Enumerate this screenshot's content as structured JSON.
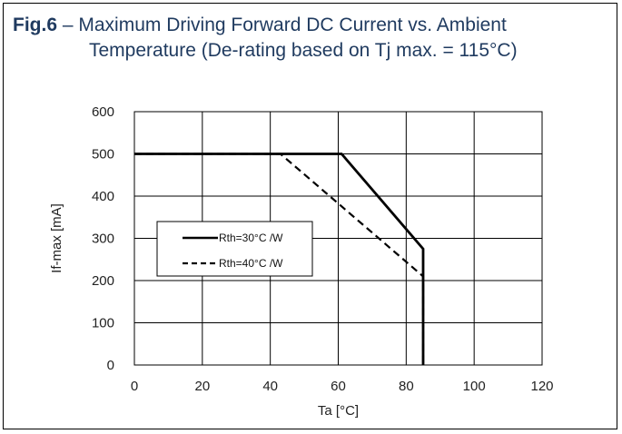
{
  "title": {
    "label": "Fig.6",
    "dash": " – ",
    "line1": "Maximum Driving Forward DC Current vs. Ambient",
    "line2": "Temperature (De-rating based on Tj max. = 115°C)"
  },
  "chart_data": {
    "type": "line",
    "xlabel": "Ta [°C]",
    "ylabel": "If-max [mA]",
    "xlim": [
      0,
      120
    ],
    "ylim": [
      0,
      600
    ],
    "xticks": [
      0,
      20,
      40,
      60,
      80,
      100,
      120
    ],
    "yticks": [
      0,
      100,
      200,
      300,
      400,
      500,
      600
    ],
    "grid": true,
    "legend": "center-left",
    "series": [
      {
        "name": "Rth=30°C /W",
        "style": "solid",
        "x": [
          0,
          61,
          85,
          85
        ],
        "y": [
          500,
          500,
          275,
          0
        ]
      },
      {
        "name": "Rth=40°C /W",
        "style": "dashed",
        "x": [
          0,
          43,
          85,
          85
        ],
        "y": [
          500,
          500,
          210,
          0
        ]
      }
    ]
  }
}
